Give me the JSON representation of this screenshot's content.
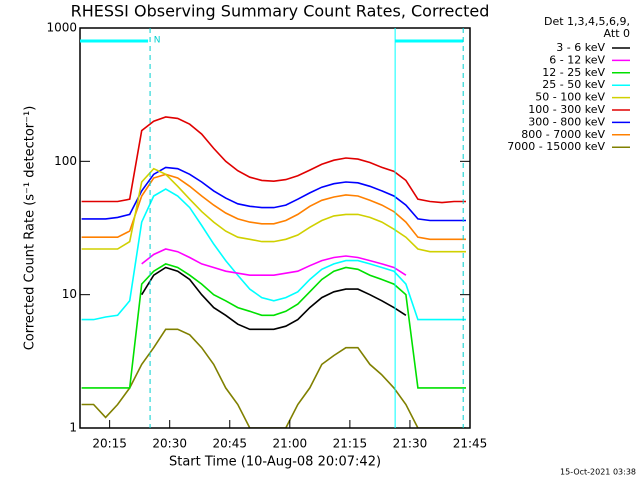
{
  "chart_data": {
    "type": "line",
    "title": "RHESSI Observing Summary Count Rates, Corrected",
    "x_label": "Start Time (10-Aug-08 20:07:42)",
    "y_label": "Corrected Count Rate (s⁻¹ detector⁻¹)",
    "legend_header": [
      "Det 1,3,4,5,6,9,",
      "Att 0"
    ],
    "timestamp": "15-Oct-2021 03:38",
    "log_y": true,
    "xlim": [
      7.6,
      105
    ],
    "ylim": [
      1,
      1000
    ],
    "xticks": [
      {
        "value": 15,
        "label": "20:15"
      },
      {
        "value": 30,
        "label": "20:30"
      },
      {
        "value": 45,
        "label": "20:45"
      },
      {
        "value": 60,
        "label": "21:00"
      },
      {
        "value": 75,
        "label": "21:15"
      },
      {
        "value": 90,
        "label": "21:30"
      },
      {
        "value": 105,
        "label": "21:45"
      }
    ],
    "yticks": [
      1,
      10,
      100,
      1000
    ],
    "night_label": "N",
    "night_intervals": [
      [
        7.6,
        24.6
      ],
      [
        86.3,
        103.3
      ]
    ],
    "dashed_lines": [
      25.1,
      103.3
    ],
    "x": [
      8,
      11,
      14,
      17,
      20,
      23,
      26,
      29,
      32,
      35,
      38,
      41,
      44,
      47,
      50,
      53,
      56,
      59,
      62,
      65,
      68,
      71,
      74,
      77,
      80,
      83,
      86,
      89,
      92,
      95,
      98,
      101,
      104
    ],
    "series": [
      {
        "name": "3 - 6 keV",
        "color": "#000000",
        "values": [
          null,
          null,
          null,
          null,
          null,
          10,
          14,
          16,
          15,
          13,
          10,
          8,
          7,
          6,
          5.5,
          5.5,
          5.5,
          5.8,
          6.5,
          8,
          9.5,
          10.5,
          11,
          11,
          10,
          9,
          8,
          7,
          null,
          null,
          null,
          null,
          null
        ]
      },
      {
        "name": "6 - 12 keV",
        "color": "#ff00ff",
        "values": [
          null,
          null,
          null,
          null,
          null,
          17,
          20,
          22,
          21,
          19,
          17,
          16,
          15,
          14.5,
          14,
          14,
          14,
          14.5,
          15,
          16.5,
          18,
          19,
          19.5,
          19,
          18,
          17,
          16,
          14,
          null,
          null,
          null,
          null,
          null
        ]
      },
      {
        "name": "12 - 25 keV",
        "color": "#00e000",
        "values": [
          2,
          2,
          2,
          2,
          2,
          12,
          15,
          17,
          16,
          14,
          12,
          10,
          9,
          8,
          7.5,
          7,
          7,
          7.5,
          8.5,
          10.5,
          13,
          15,
          16,
          15.5,
          14,
          13,
          12,
          10,
          2,
          2,
          2,
          2,
          2
        ]
      },
      {
        "name": "25 - 50 keV",
        "color": "#00ffff",
        "values": [
          6.5,
          6.5,
          6.8,
          7,
          9,
          35,
          55,
          62,
          55,
          45,
          33,
          24,
          18,
          14,
          11,
          9.5,
          9,
          9.5,
          10.5,
          13,
          15.5,
          17,
          18,
          18,
          17,
          16,
          15,
          12,
          6.5,
          6.5,
          6.5,
          6.5,
          6.5
        ]
      },
      {
        "name": "50 - 100 keV",
        "color": "#d0d000",
        "values": [
          22,
          22,
          22,
          22,
          25,
          70,
          88,
          80,
          65,
          52,
          42,
          35,
          30,
          27,
          26,
          25,
          25,
          26,
          28,
          32,
          36,
          39,
          40,
          40,
          38,
          35,
          31,
          27,
          22,
          21,
          21,
          21,
          21
        ]
      },
      {
        "name": "100 - 300 keV",
        "color": "#e00000",
        "values": [
          50,
          50,
          50,
          50,
          52,
          170,
          200,
          215,
          210,
          190,
          160,
          125,
          100,
          85,
          76,
          72,
          71,
          73,
          78,
          86,
          95,
          102,
          106,
          104,
          98,
          90,
          84,
          72,
          52,
          50,
          49,
          50,
          50
        ]
      },
      {
        "name": "300 - 800 keV",
        "color": "#0000ff",
        "values": [
          37,
          37,
          37,
          38,
          40,
          60,
          80,
          90,
          88,
          80,
          70,
          60,
          53,
          48,
          46,
          45,
          45,
          47,
          52,
          58,
          64,
          68,
          70,
          69,
          65,
          60,
          55,
          47,
          37,
          36,
          36,
          36,
          36
        ]
      },
      {
        "name": "800 - 7000 keV",
        "color": "#ff8000",
        "values": [
          27,
          27,
          27,
          27,
          30,
          55,
          75,
          80,
          75,
          65,
          55,
          47,
          41,
          37,
          35,
          34,
          34,
          36,
          40,
          46,
          51,
          54,
          56,
          55,
          51,
          47,
          42,
          35,
          27,
          26,
          26,
          26,
          26
        ]
      },
      {
        "name": "7000 - 15000 keV",
        "color": "#808000",
        "values": [
          1.5,
          1.5,
          1.2,
          1.5,
          2,
          3,
          4,
          5.5,
          5.5,
          5,
          4,
          3,
          2,
          1.5,
          1,
          1,
          1,
          1,
          1.5,
          2,
          3,
          3.5,
          4,
          4,
          3,
          2.5,
          2,
          1.5,
          1,
          1,
          1,
          1,
          1
        ]
      }
    ]
  }
}
